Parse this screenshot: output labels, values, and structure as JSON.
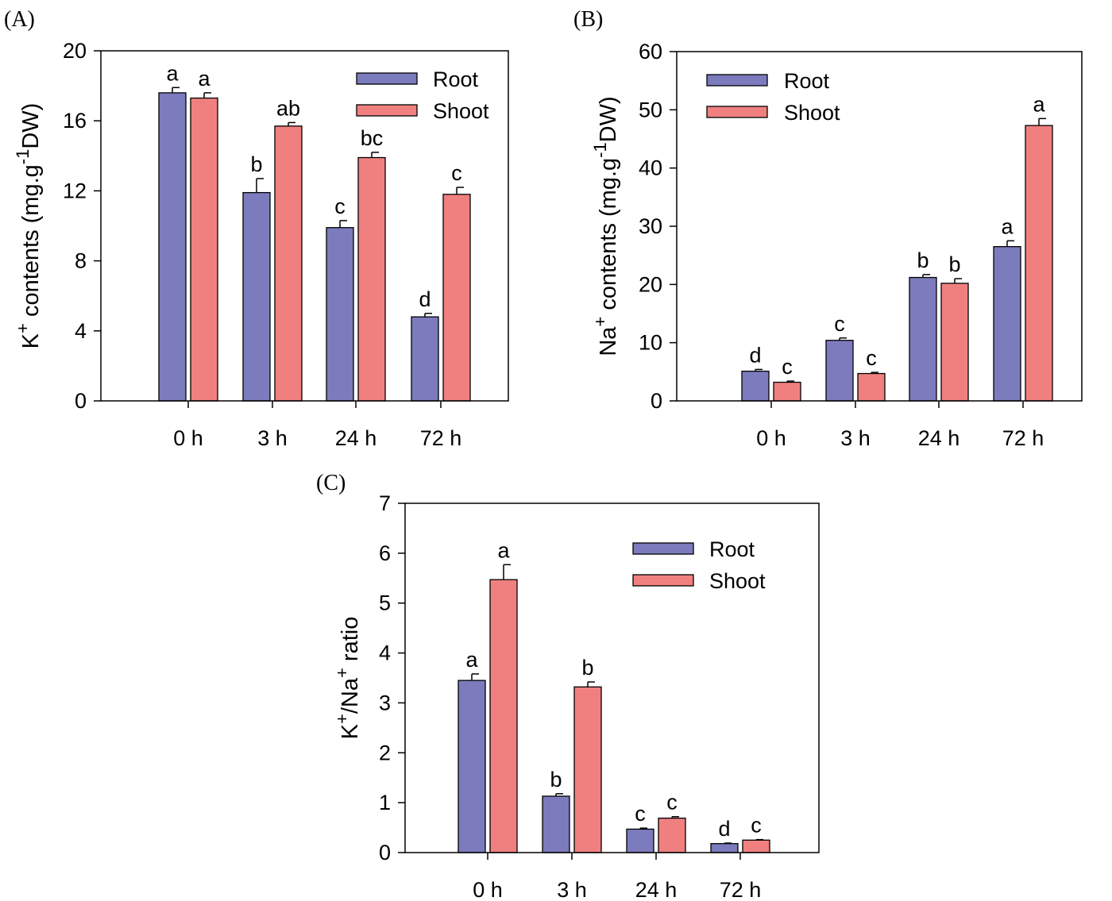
{
  "chart_data": [
    {
      "type": "bar",
      "panel_label": "(A)",
      "categories": [
        "0 h",
        "3 h",
        "24 h",
        "72 h"
      ],
      "ylabel": {
        "base": "K",
        "sup": "+",
        "text": " contents (mg.g",
        "sup2": "-1",
        "tail": "DW)"
      },
      "ylim": [
        0,
        20
      ],
      "yticks": [
        "0",
        "4",
        "8",
        "12",
        "16",
        "20"
      ],
      "legend_position": "top-right",
      "series": [
        {
          "name": "Root",
          "color": "#7b7bbd",
          "values": [
            17.6,
            11.9,
            9.9,
            4.8
          ],
          "errors": [
            0.3,
            0.8,
            0.4,
            0.2
          ],
          "letters": [
            "a",
            "b",
            "c",
            "d"
          ]
        },
        {
          "name": "Shoot",
          "color": "#f08080",
          "values": [
            17.3,
            15.7,
            13.9,
            11.8
          ],
          "errors": [
            0.3,
            0.2,
            0.3,
            0.4
          ],
          "letters": [
            "a",
            "ab",
            "bc",
            "c"
          ]
        }
      ]
    },
    {
      "type": "bar",
      "panel_label": "(B)",
      "categories": [
        "0 h",
        "3 h",
        "24 h",
        "72 h"
      ],
      "ylabel": {
        "base": "Na",
        "sup": "+",
        "text": " contents (mg.g",
        "sup2": "-1",
        "tail": "DW)"
      },
      "ylim": [
        0,
        60
      ],
      "yticks": [
        "0",
        "10",
        "20",
        "30",
        "40",
        "50",
        "60"
      ],
      "legend_position": "top-left",
      "series": [
        {
          "name": "Root",
          "color": "#7b7bbd",
          "values": [
            5.1,
            10.4,
            21.2,
            26.5
          ],
          "errors": [
            0.3,
            0.4,
            0.5,
            1.0
          ],
          "letters": [
            "d",
            "c",
            "b",
            "a"
          ]
        },
        {
          "name": "Shoot",
          "color": "#f08080",
          "values": [
            3.2,
            4.7,
            20.2,
            47.3
          ],
          "errors": [
            0.2,
            0.2,
            0.8,
            1.2
          ],
          "letters": [
            "c",
            "c",
            "b",
            "a"
          ]
        }
      ]
    },
    {
      "type": "bar",
      "panel_label": "(C)",
      "categories": [
        "0 h",
        "3  h",
        "24 h",
        "72 h"
      ],
      "ylabel": {
        "base": "K",
        "sup": "+",
        "text": "/Na",
        "sup2": "+",
        "tail": " ratio"
      },
      "ylim": [
        0,
        7
      ],
      "yticks": [
        "0",
        "1",
        "2",
        "3",
        "4",
        "5",
        "6",
        "7"
      ],
      "legend_position": "top-right",
      "series": [
        {
          "name": "Root",
          "color": "#7b7bbd",
          "values": [
            3.45,
            1.13,
            0.47,
            0.18
          ],
          "errors": [
            0.13,
            0.05,
            0.02,
            0.01
          ],
          "letters": [
            "a",
            "b",
            "c",
            "d"
          ]
        },
        {
          "name": "Shoot",
          "color": "#f08080",
          "values": [
            5.47,
            3.32,
            0.69,
            0.25
          ],
          "errors": [
            0.3,
            0.1,
            0.03,
            0.01
          ],
          "letters": [
            "a",
            "b",
            "c",
            "c"
          ]
        }
      ]
    }
  ]
}
